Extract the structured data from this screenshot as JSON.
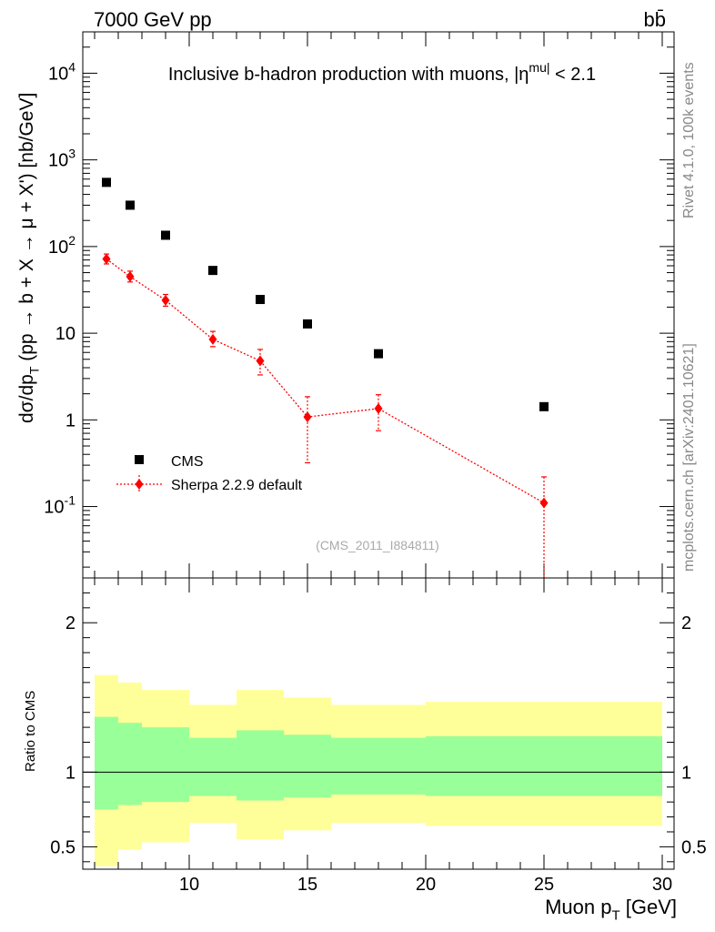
{
  "header": {
    "energy_label": "7000 GeV pp",
    "process_label": "bb̄"
  },
  "side_labels": {
    "rivet": "Rivet 4.1.0,  100k events",
    "source": "mcplots.cern.ch [arXiv:2401.10621]"
  },
  "chart_data": [
    {
      "type": "scatter",
      "title": "Inclusive b-hadron production with muons, |η^mu| < 2.1",
      "analysis_tag": "(CMS_2011_I884811)",
      "xlabel": "Muon p_T [GeV]",
      "ylabel": "dσ/dp_T (pp → b + X → μ + X') [nb/GeV]",
      "xlim": [
        5.5,
        30.5
      ],
      "ylim": [
        0.015,
        30000
      ],
      "yscale": "log",
      "y_tick_labels": [
        "10^-1",
        "1",
        "10",
        "10^2",
        "10^3",
        "10^4"
      ],
      "legend_position": "bottom-left",
      "series": [
        {
          "name": "CMS",
          "marker": "square",
          "color": "#000000",
          "x": [
            6.5,
            7.5,
            9.0,
            11.0,
            13.0,
            15.0,
            18.0,
            25.0
          ],
          "y": [
            550,
            300,
            135,
            53,
            24.5,
            12.8,
            5.8,
            1.42
          ]
        },
        {
          "name": "Sherpa 2.2.9 default",
          "marker": "diamond",
          "line": "dotted",
          "color": "#ff0000",
          "x": [
            6.5,
            7.5,
            9.0,
            11.0,
            13.0,
            15.0,
            18.0,
            25.0
          ],
          "y": [
            72,
            45,
            24,
            8.5,
            4.8,
            1.08,
            1.35,
            0.11
          ],
          "y_low": [
            63,
            39,
            20.5,
            7.0,
            3.3,
            0.32,
            0.75,
            0.013
          ],
          "y_high": [
            82,
            52,
            28,
            10.5,
            6.5,
            1.85,
            1.95,
            0.22
          ]
        }
      ]
    },
    {
      "type": "area",
      "title": "",
      "xlabel": "Muon p_T [GeV]",
      "ylabel": "Ratio to CMS",
      "xlim": [
        5.5,
        30.5
      ],
      "ylim": [
        0.35,
        2.3
      ],
      "x_tick_labels": [
        "10",
        "15",
        "20",
        "25",
        "30"
      ],
      "y_tick_labels": [
        "0.5",
        "1",
        "2"
      ],
      "reference_line": 1,
      "bins": [
        {
          "x_low": 6.0,
          "x_high": 7.0,
          "stat_low": 0.75,
          "stat_high": 1.37,
          "total_low": 0.37,
          "total_high": 1.65
        },
        {
          "x_low": 7.0,
          "x_high": 8.0,
          "stat_low": 0.78,
          "stat_high": 1.33,
          "total_low": 0.48,
          "total_high": 1.6
        },
        {
          "x_low": 8.0,
          "x_high": 10.0,
          "stat_low": 0.8,
          "stat_high": 1.3,
          "total_low": 0.53,
          "total_high": 1.55
        },
        {
          "x_low": 10.0,
          "x_high": 12.0,
          "stat_low": 0.84,
          "stat_high": 1.23,
          "total_low": 0.66,
          "total_high": 1.45
        },
        {
          "x_low": 12.0,
          "x_high": 14.0,
          "stat_low": 0.81,
          "stat_high": 1.28,
          "total_low": 0.55,
          "total_high": 1.55
        },
        {
          "x_low": 14.0,
          "x_high": 16.0,
          "stat_low": 0.83,
          "stat_high": 1.25,
          "total_low": 0.61,
          "total_high": 1.5
        },
        {
          "x_low": 16.0,
          "x_high": 20.0,
          "stat_low": 0.85,
          "stat_high": 1.23,
          "total_low": 0.66,
          "total_high": 1.45
        },
        {
          "x_low": 20.0,
          "x_high": 30.0,
          "stat_low": 0.84,
          "stat_high": 1.24,
          "total_low": 0.64,
          "total_high": 1.47
        }
      ],
      "colors": {
        "stat_band": "#99ff99",
        "total_band": "#ffff99",
        "line": "#000000"
      }
    }
  ]
}
